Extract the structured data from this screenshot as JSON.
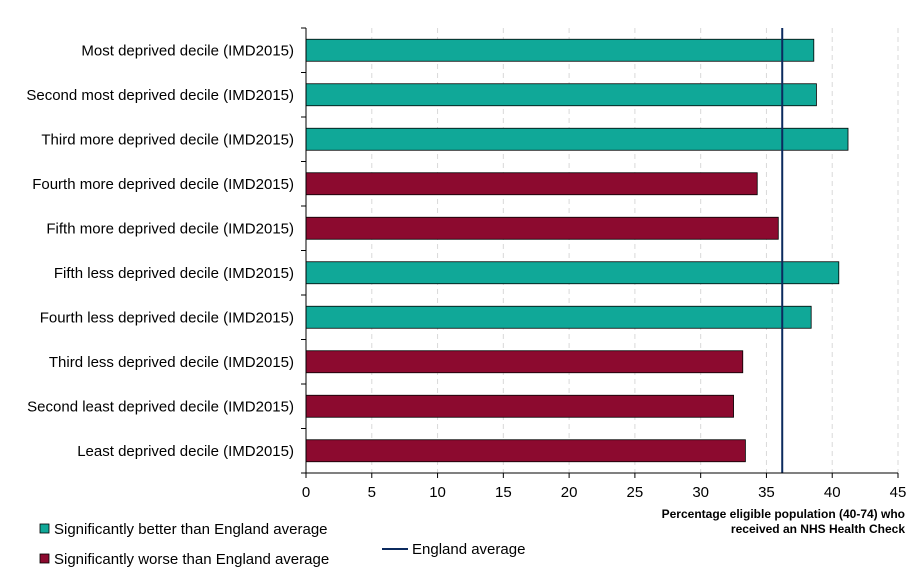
{
  "chart_data": {
    "type": "bar",
    "orientation": "horizontal",
    "categories": [
      "Most deprived decile (IMD2015)",
      "Second most deprived decile (IMD2015)",
      "Third more deprived decile (IMD2015)",
      "Fourth more deprived decile (IMD2015)",
      "Fifth more deprived decile (IMD2015)",
      "Fifth less deprived decile (IMD2015)",
      "Fourth less deprived decile (IMD2015)",
      "Third less deprived decile (IMD2015)",
      "Second least deprived decile (IMD2015)",
      "Least deprived decile (IMD2015)"
    ],
    "values": [
      38.6,
      38.8,
      41.2,
      34.3,
      35.9,
      40.5,
      38.4,
      33.2,
      32.5,
      33.4
    ],
    "groups": [
      "better",
      "better",
      "better",
      "worse",
      "worse",
      "better",
      "better",
      "worse",
      "worse",
      "worse"
    ],
    "xlim": [
      0,
      45
    ],
    "xticks": [
      0,
      5,
      10,
      15,
      20,
      25,
      30,
      35,
      40,
      45
    ],
    "xlabel_line1": "Percentage eligible population (40-74) who",
    "xlabel_line2": "received an NHS Health Check",
    "reference_line": {
      "name": "England average",
      "value": 36.2,
      "color": "#0b2a5e"
    },
    "legend": [
      {
        "key": "better",
        "label": "Significantly better than England average",
        "color": "#10a898"
      },
      {
        "key": "worse",
        "label": "Significantly worse than England average",
        "color": "#8c0a2f"
      }
    ],
    "grid": "vertical-dashed",
    "legend_position": "bottom-left"
  }
}
